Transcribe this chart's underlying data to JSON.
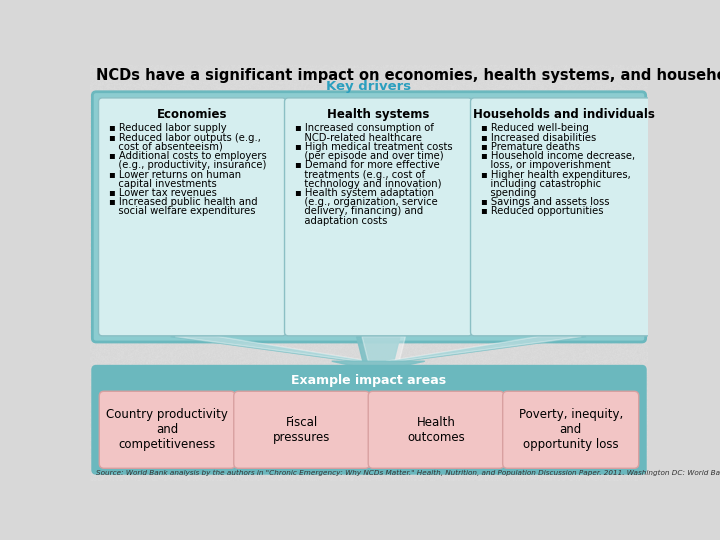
{
  "title": "NCDs have a significant impact on economies, health systems, and households",
  "subtitle": "Key drivers",
  "subtitle_color": "#2B9FBF",
  "background_color": "#D8D8D8",
  "outer_box_color": "#6BB8BE",
  "outer_box_face": "#8CCCD0",
  "inner_box_color": "#D5EEEF",
  "inner_box_edge": "#8BBFC4",
  "bottom_box_color": "#6BB8BE",
  "bottom_item_color": "#F2C5C5",
  "bottom_item_edge": "#D8A0A0",
  "arrow_color": "#7DC0C5",
  "col_headers": [
    "Economies",
    "Health systems",
    "Households and individuals"
  ],
  "col1_items": [
    "▪ Reduced labor supply",
    "▪ Reduced labor outputs (e.g.,\n   cost of absenteeism)",
    "▪ Additional costs to employers\n   (e.g., productivity, insurance)",
    "▪ Lower returns on human\n   capital investments",
    "▪ Lower tax revenues",
    "▪ Increased public health and\n   social welfare expenditures"
  ],
  "col2_items": [
    "▪ Increased consumption of\n   NCD-related healthcare",
    "▪ High medical treatment costs\n   (per episode and over time)",
    "▪ Demand for more effective\n   treatments (e.g., cost of\n   technology and innovation)",
    "▪ Health system adaptation\n   (e.g., organization, service\n   delivery, financing) and\n   adaptation costs"
  ],
  "col3_items": [
    "▪ Reduced well-being",
    "▪ Increased disabilities",
    "▪ Premature deaths",
    "▪ Household income decrease,\n   loss, or impoverishment",
    "▪ Higher health expenditures,\n   including catastrophic\n   spending",
    "▪ Savings and assets loss",
    "▪ Reduced opportunities"
  ],
  "example_label": "Example impact areas",
  "bottom_items": [
    "Country productivity\nand\ncompetitiveness",
    "Fiscal\npressures",
    "Health\noutcomes",
    "Poverty, inequity,\nand\nopportunity loss"
  ],
  "source_text": "Source: World Bank analysis by the authors in \"Chronic Emergency: Why NCDs Matter.\" Health, Nutrition, and Population Discussion Paper. 2011. Washington DC: World Ba"
}
